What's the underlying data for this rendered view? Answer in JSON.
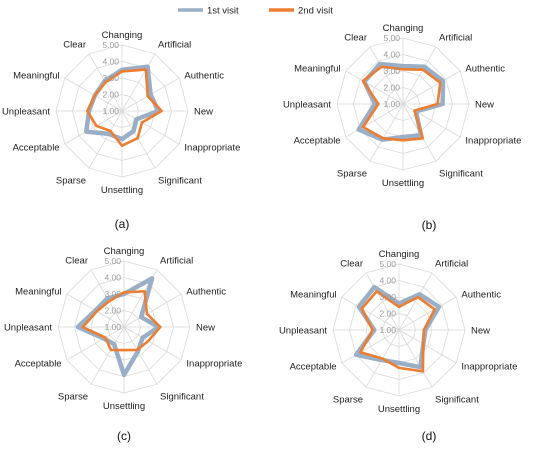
{
  "legend": {
    "position": "top-center",
    "items": [
      {
        "label": "1st visit",
        "color": "#9aaec6"
      },
      {
        "label": "2nd visit",
        "color": "#ed7d31"
      }
    ]
  },
  "chart_data": [
    {
      "type": "radar",
      "panel_label": "(a)",
      "rmin": 1,
      "rmax": 5,
      "ticks": [
        "1.00",
        "2.00",
        "3.00",
        "4.00",
        "5.00"
      ],
      "tick_values": [
        1,
        2,
        3,
        4,
        5
      ],
      "categories": [
        "Changing",
        "Artificial",
        "Authentic",
        "New",
        "Inappropriate",
        "Significant",
        "Unsettling",
        "Sparse",
        "Acceptable",
        "Unpleasant",
        "Meaningful",
        "Clear"
      ],
      "series": [
        {
          "name": "1st visit",
          "values": [
            3.5,
            4.1,
            3.0,
            3.2,
            2.0,
            2.4,
            2.7,
            2.6,
            3.5,
            3.0,
            2.9,
            3.1
          ]
        },
        {
          "name": "2nd visit",
          "values": [
            3.4,
            3.9,
            2.8,
            3.4,
            2.4,
            2.9,
            3.1,
            2.4,
            2.8,
            3.1,
            2.9,
            3.0
          ]
        }
      ]
    },
    {
      "type": "radar",
      "panel_label": "(b)",
      "rmin": 1,
      "rmax": 5,
      "ticks": [
        "1.00",
        "2.00",
        "3.00",
        "4.00",
        "5.00"
      ],
      "tick_values": [
        1,
        2,
        3,
        4,
        5
      ],
      "categories": [
        "Changing",
        "Artificial",
        "Authentic",
        "New",
        "Inappropriate",
        "Significant",
        "Unsettling",
        "Sparse",
        "Acceptable",
        "Unpleasant",
        "Meaningful",
        "Clear"
      ],
      "series": [
        {
          "name": "1st visit",
          "values": [
            3.3,
            3.6,
            3.8,
            3.4,
            1.9,
            3.2,
            3.0,
            3.5,
            4.1,
            2.7,
            3.7,
            3.8
          ]
        },
        {
          "name": "2nd visit",
          "values": [
            3.1,
            3.4,
            3.6,
            3.1,
            1.8,
            3.4,
            3.2,
            3.4,
            3.8,
            2.5,
            3.8,
            3.6
          ]
        }
      ]
    },
    {
      "type": "radar",
      "panel_label": "(c)",
      "rmin": 1,
      "rmax": 5,
      "ticks": [
        "1.00",
        "2.00",
        "3.00",
        "4.00",
        "5.00"
      ],
      "tick_values": [
        1,
        2,
        3,
        4,
        5
      ],
      "categories": [
        "Changing",
        "Artificial",
        "Authentic",
        "New",
        "Inappropriate",
        "Significant",
        "Unsettling",
        "Sparse",
        "Acceptable",
        "Unpleasant",
        "Meaningful",
        "Clear"
      ],
      "series": [
        {
          "name": "1st visit",
          "values": [
            3.0,
            4.4,
            2.2,
            3.1,
            2.3,
            2.7,
            3.9,
            2.2,
            2.4,
            3.8,
            3.0,
            3.0
          ]
        },
        {
          "name": "2nd visit",
          "values": [
            3.1,
            3.5,
            2.6,
            3.2,
            2.7,
            2.6,
            2.4,
            2.6,
            2.3,
            3.5,
            2.9,
            2.8
          ]
        }
      ]
    },
    {
      "type": "radar",
      "panel_label": "(d)",
      "rmin": 1,
      "rmax": 5,
      "ticks": [
        "1.00",
        "2.00",
        "3.00",
        "4.00",
        "5.00"
      ],
      "tick_values": [
        1,
        2,
        3,
        4,
        5
      ],
      "categories": [
        "Changing",
        "Artificial",
        "Authentic",
        "New",
        "Inappropriate",
        "Significant",
        "Unsettling",
        "Sparse",
        "Acceptable",
        "Unpleasant",
        "Meaningful",
        "Clear"
      ],
      "series": [
        {
          "name": "1st visit",
          "values": [
            2.6,
            3.5,
            3.8,
            2.6,
            2.7,
            3.6,
            3.0,
            3.1,
            4.0,
            2.5,
            3.8,
            4.0
          ]
        },
        {
          "name": "2nd visit",
          "values": [
            2.4,
            3.3,
            3.5,
            2.5,
            2.7,
            3.9,
            3.3,
            3.0,
            3.7,
            2.6,
            3.6,
            3.7
          ]
        }
      ]
    }
  ]
}
